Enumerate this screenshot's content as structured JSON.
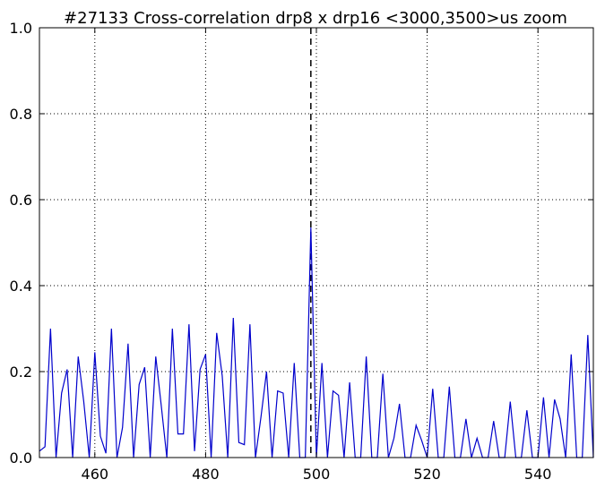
{
  "chart_data": {
    "type": "line",
    "title": "#27133 Cross-correlation drp8 x drp16 <3000,3500>us zoom",
    "xlabel": "",
    "ylabel": "",
    "xlim": [
      450,
      550
    ],
    "ylim": [
      0.0,
      1.0
    ],
    "xticks": [
      460,
      480,
      500,
      520,
      540
    ],
    "xtick_labels": [
      "460",
      "480",
      "500",
      "520",
      "540"
    ],
    "yticks": [
      0.0,
      0.2,
      0.4,
      0.6,
      0.8,
      1.0
    ],
    "ytick_labels": [
      "0.0",
      "0.2",
      "0.4",
      "0.6",
      "0.8",
      "1.0"
    ],
    "grid": true,
    "vline_x": 499,
    "series": [
      {
        "color": "#0000cc",
        "x": [
          450,
          451,
          452,
          453,
          454,
          455,
          456,
          457,
          458,
          459,
          460,
          461,
          462,
          463,
          464,
          465,
          466,
          467,
          468,
          469,
          470,
          471,
          472,
          473,
          474,
          475,
          476,
          477,
          478,
          479,
          480,
          481,
          482,
          483,
          484,
          485,
          486,
          487,
          488,
          489,
          490,
          491,
          492,
          493,
          494,
          495,
          496,
          497,
          498,
          499,
          500,
          501,
          502,
          503,
          504,
          505,
          506,
          507,
          508,
          509,
          510,
          511,
          512,
          513,
          514,
          515,
          516,
          517,
          518,
          519,
          520,
          521,
          522,
          523,
          524,
          525,
          526,
          527,
          528,
          529,
          530,
          531,
          532,
          533,
          534,
          535,
          536,
          537,
          538,
          539,
          540,
          541,
          542,
          543,
          544,
          545,
          546,
          547,
          548,
          549,
          550
        ],
        "y": [
          0.015,
          0.025,
          0.3,
          0.0,
          0.15,
          0.205,
          0.0,
          0.235,
          0.13,
          0.0,
          0.245,
          0.05,
          0.01,
          0.3,
          0.0,
          0.07,
          0.265,
          0.0,
          0.17,
          0.21,
          0.0,
          0.235,
          0.12,
          0.0,
          0.3,
          0.055,
          0.055,
          0.31,
          0.015,
          0.205,
          0.24,
          0.0,
          0.29,
          0.19,
          0.0,
          0.325,
          0.035,
          0.03,
          0.31,
          0.0,
          0.095,
          0.2,
          0.0,
          0.155,
          0.15,
          0.0,
          0.22,
          0.0,
          0.0,
          0.535,
          0.0,
          0.22,
          0.0,
          0.155,
          0.145,
          0.0,
          0.175,
          0.0,
          0.0,
          0.235,
          0.0,
          0.0,
          0.195,
          0.0,
          0.045,
          0.125,
          0.0,
          0.0,
          0.075,
          0.04,
          0.0,
          0.16,
          0.0,
          0.0,
          0.165,
          0.0,
          0.0,
          0.09,
          0.0,
          0.045,
          0.0,
          0.0,
          0.085,
          0.0,
          0.0,
          0.13,
          0.0,
          0.0,
          0.11,
          0.0,
          0.0,
          0.14,
          0.0,
          0.135,
          0.09,
          0.0,
          0.24,
          0.0,
          0.0,
          0.285,
          0.0
        ]
      }
    ]
  }
}
